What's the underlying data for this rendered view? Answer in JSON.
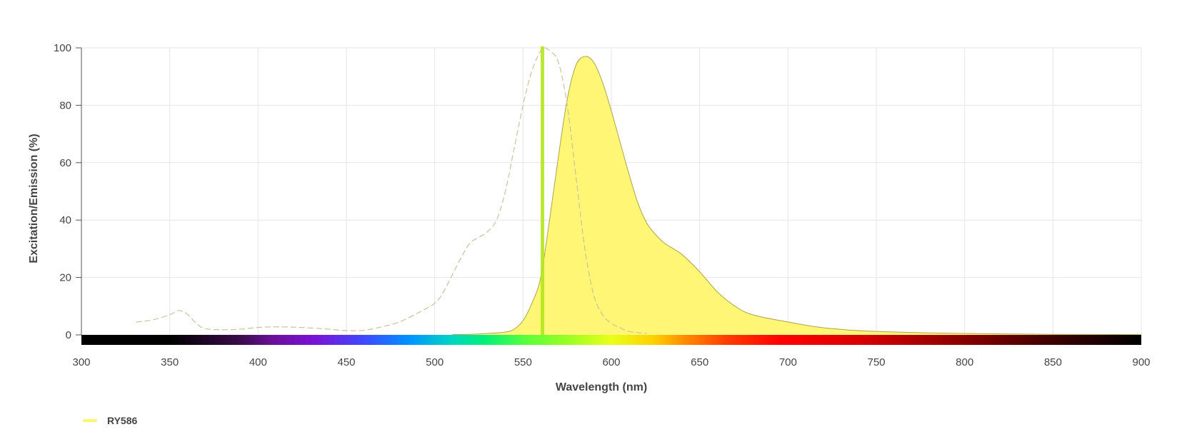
{
  "chart_data": {
    "type": "area",
    "title": "",
    "xlabel": "Wavelength (nm)",
    "ylabel": "Excitation/Emission (%)",
    "xlim": [
      300,
      900
    ],
    "ylim": [
      0,
      100
    ],
    "x_ticks": [
      300,
      350,
      400,
      450,
      500,
      550,
      600,
      650,
      700,
      750,
      800,
      850,
      900
    ],
    "y_ticks": [
      0,
      20,
      40,
      60,
      80,
      100
    ],
    "grid": true,
    "legend_position": "bottom-left",
    "laser_line": {
      "wavelength": 561,
      "color": "#b5e61d"
    },
    "spectrum_bar": true,
    "series": [
      {
        "name": "RY586",
        "kind": "excitation",
        "style": "dashed",
        "color": "#c9c3a0",
        "x": [
          331,
          340,
          350,
          355,
          360,
          365,
          370,
          380,
          390,
          400,
          410,
          420,
          430,
          440,
          450,
          460,
          470,
          480,
          490,
          500,
          505,
          510,
          515,
          520,
          525,
          530,
          535,
          540,
          545,
          550,
          555,
          560,
          562,
          565,
          570,
          575,
          580,
          585,
          590,
          595,
          600,
          605,
          610,
          620
        ],
        "values": [
          4.5,
          5.2,
          7,
          8.5,
          7.2,
          4,
          2.2,
          1.8,
          2,
          2.6,
          2.8,
          2.7,
          2.4,
          2,
          1.5,
          1.6,
          2.8,
          4.5,
          7.5,
          11,
          15,
          21,
          27,
          32,
          34,
          36,
          40,
          50,
          65,
          80,
          92,
          99,
          100,
          99,
          95,
          80,
          55,
          30,
          14,
          7,
          4,
          2.5,
          1.2,
          0.5
        ]
      },
      {
        "name": "RY586",
        "kind": "emission",
        "style": "filled",
        "color": "#fff56e",
        "line_color": "#a9a54a",
        "x": [
          510,
          520,
          530,
          540,
          545,
          550,
          555,
          560,
          565,
          570,
          575,
          580,
          585,
          590,
          595,
          600,
          605,
          610,
          615,
          620,
          625,
          630,
          640,
          650,
          660,
          670,
          680,
          700,
          720,
          750,
          800,
          850,
          900
        ],
        "values": [
          0.1,
          0.2,
          0.5,
          1,
          2,
          5,
          11,
          20,
          40,
          62,
          82,
          94,
          97,
          95,
          88,
          78,
          67,
          56,
          46,
          39,
          35,
          32,
          28,
          22,
          15,
          10,
          7,
          4.5,
          2.5,
          1.2,
          0.5,
          0.2,
          0.1
        ]
      }
    ]
  },
  "legend": {
    "label": "RY586",
    "color": "#fff56e"
  }
}
